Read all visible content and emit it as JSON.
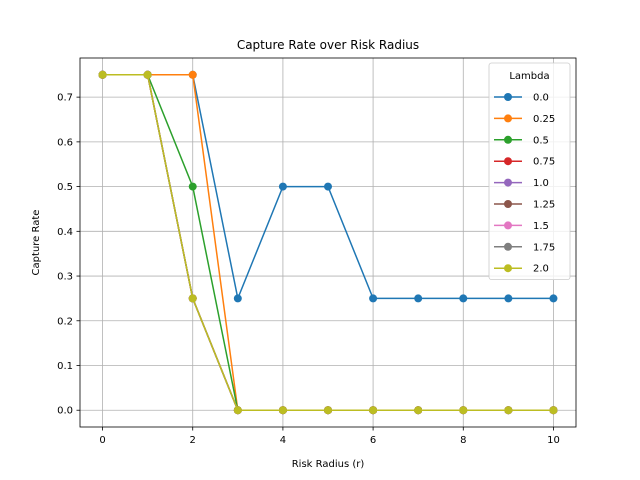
{
  "chart_data": {
    "type": "line",
    "title": "Capture Rate over Risk Radius",
    "xlabel": "Risk Radius (r)",
    "ylabel": "Capture Rate",
    "xlim": [
      -0.5,
      10.5
    ],
    "ylim": [
      -0.0375,
      0.7875
    ],
    "xticks": [
      0,
      2,
      4,
      6,
      8,
      10
    ],
    "yticks": [
      0.0,
      0.1,
      0.2,
      0.3,
      0.4,
      0.5,
      0.6,
      0.7
    ],
    "ytick_labels": [
      "0.0",
      "0.1",
      "0.2",
      "0.3",
      "0.4",
      "0.5",
      "0.6",
      "0.7"
    ],
    "grid": true,
    "legend": {
      "title": "Lambda",
      "position": "top-right"
    },
    "x": [
      0,
      1,
      2,
      3,
      4,
      5,
      6,
      7,
      8,
      9,
      10
    ],
    "series": [
      {
        "name": "0.0",
        "color": "#1f77b4",
        "values": [
          0.75,
          0.75,
          0.75,
          0.25,
          0.5,
          0.5,
          0.25,
          0.25,
          0.25,
          0.25,
          0.25
        ]
      },
      {
        "name": "0.25",
        "color": "#ff7f0e",
        "values": [
          0.75,
          0.75,
          0.75,
          0.0,
          0.0,
          0.0,
          0.0,
          0.0,
          0.0,
          0.0,
          0.0
        ]
      },
      {
        "name": "0.5",
        "color": "#2ca02c",
        "values": [
          0.75,
          0.75,
          0.5,
          0.0,
          0.0,
          0.0,
          0.0,
          0.0,
          0.0,
          0.0,
          0.0
        ]
      },
      {
        "name": "0.75",
        "color": "#d62728",
        "values": [
          0.75,
          0.75,
          0.25,
          0.0,
          0.0,
          0.0,
          0.0,
          0.0,
          0.0,
          0.0,
          0.0
        ]
      },
      {
        "name": "1.0",
        "color": "#9467bd",
        "values": [
          0.75,
          0.75,
          0.25,
          0.0,
          0.0,
          0.0,
          0.0,
          0.0,
          0.0,
          0.0,
          0.0
        ]
      },
      {
        "name": "1.25",
        "color": "#8c564b",
        "values": [
          0.75,
          0.75,
          0.25,
          0.0,
          0.0,
          0.0,
          0.0,
          0.0,
          0.0,
          0.0,
          0.0
        ]
      },
      {
        "name": "1.5",
        "color": "#e377c2",
        "values": [
          0.75,
          0.75,
          0.25,
          0.0,
          0.0,
          0.0,
          0.0,
          0.0,
          0.0,
          0.0,
          0.0
        ]
      },
      {
        "name": "1.75",
        "color": "#7f7f7f",
        "values": [
          0.75,
          0.75,
          0.25,
          0.0,
          0.0,
          0.0,
          0.0,
          0.0,
          0.0,
          0.0,
          0.0
        ]
      },
      {
        "name": "2.0",
        "color": "#bcbd22",
        "values": [
          0.75,
          0.75,
          0.25,
          0.0,
          0.0,
          0.0,
          0.0,
          0.0,
          0.0,
          0.0,
          0.0
        ]
      }
    ]
  }
}
